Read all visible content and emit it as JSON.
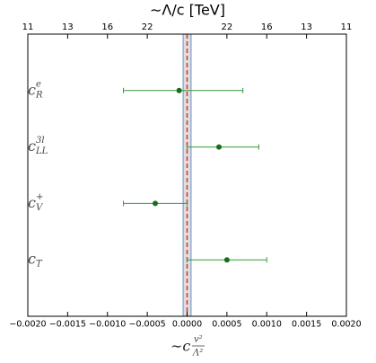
{
  "chart_data": {
    "type": "errorbar",
    "title": "∼Λ/c [TeV]",
    "xlabel": {
      "prefix": "∼c",
      "numerator": "v²",
      "denominator": "Λ²"
    },
    "categories": [
      {
        "base": "c",
        "sub": "R",
        "sup": "e"
      },
      {
        "base": "c",
        "sub": "LL",
        "sup": "3l"
      },
      {
        "base": "c",
        "sub": "V",
        "sup": "+"
      },
      {
        "base": "c",
        "sub": "T",
        "sup": ""
      }
    ],
    "values": [
      -0.0001,
      0.0004,
      -0.0004,
      0.0005
    ],
    "lower": [
      -0.0008,
      0.0,
      -0.0008,
      0.0
    ],
    "upper": [
      0.0007,
      0.0009,
      0.0,
      0.001
    ],
    "point_color": "#1b6e1b",
    "bar_color": "#3c9a3c",
    "reference_line": 0,
    "reference_color": "#e03030",
    "band": [
      -5e-05,
      5e-05
    ],
    "band_color": "#c8c8c8",
    "band_edge_color": "#6a8fd0",
    "xlim": [
      -0.002,
      0.002
    ],
    "xticks": [
      {
        "value": -0.002,
        "label": "−0.0020"
      },
      {
        "value": -0.0015,
        "label": "−0.0015"
      },
      {
        "value": -0.001,
        "label": "−0.0010"
      },
      {
        "value": -0.0005,
        "label": "−0.0005"
      },
      {
        "value": 0,
        "label": "0.0000"
      },
      {
        "value": 0.0005,
        "label": "0.0005"
      },
      {
        "value": 0.001,
        "label": "0.0010"
      },
      {
        "value": 0.0015,
        "label": "0.0015"
      },
      {
        "value": 0.002,
        "label": "0.0020"
      }
    ],
    "top_ticks": [
      {
        "value": -0.002,
        "label": "11"
      },
      {
        "value": -0.0015,
        "label": "13"
      },
      {
        "value": -0.001,
        "label": "16"
      },
      {
        "value": -0.0005,
        "label": "22"
      },
      {
        "value": 0.0005,
        "label": "22"
      },
      {
        "value": 0.001,
        "label": "16"
      },
      {
        "value": 0.0015,
        "label": "13"
      },
      {
        "value": 0.002,
        "label": "11"
      }
    ]
  }
}
